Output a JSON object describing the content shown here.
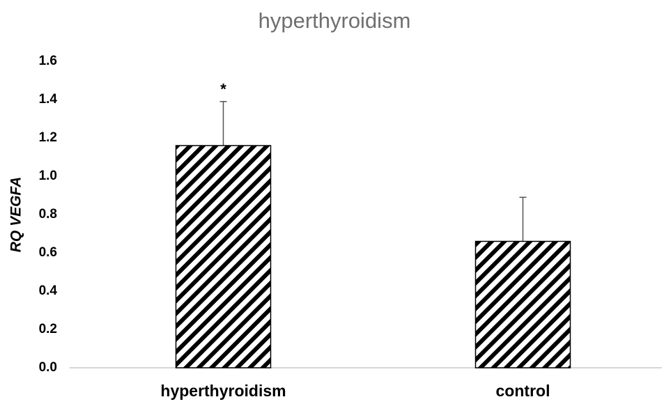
{
  "chart_data": {
    "type": "bar",
    "title": "hyperthyroidism",
    "y_label": "RQ VEGFA",
    "categories": [
      "hyperthyroidism",
      "control"
    ],
    "values": [
      1.16,
      0.66
    ],
    "errors": [
      0.23,
      0.23
    ],
    "color": "#000000",
    "ylim": [
      0,
      1.6
    ],
    "yticks": [
      {
        "value": 0,
        "label": "0.0"
      },
      0.2,
      0.4,
      0.6,
      0.8,
      {
        "value": 1,
        "label": "1.0"
      },
      1.2,
      1.4,
      1.6
    ],
    "annotations": [
      {
        "text": "*",
        "x": "hyperthyroidism"
      }
    ],
    "grid": false
  }
}
